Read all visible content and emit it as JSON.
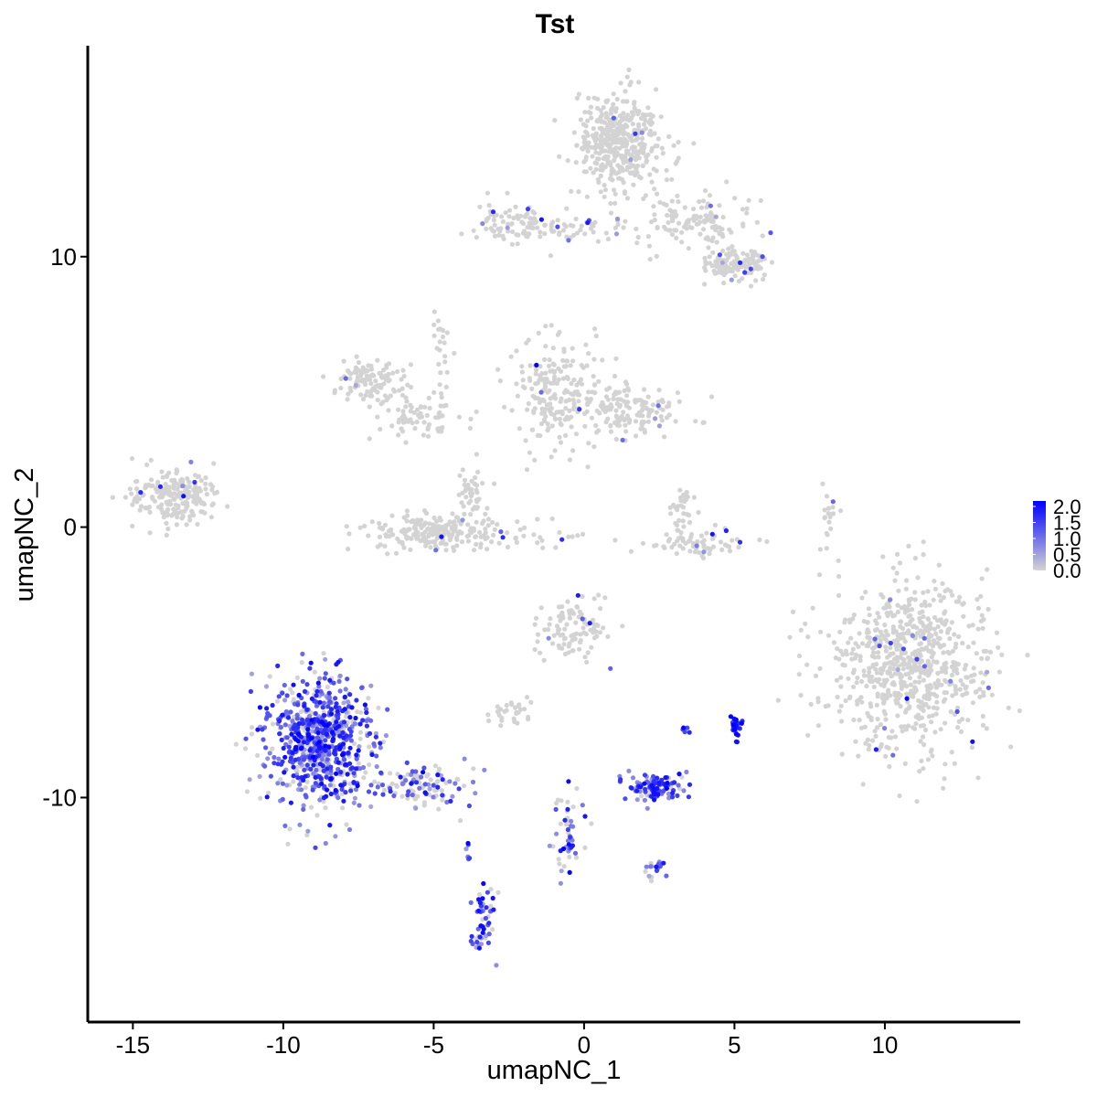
{
  "chart_data": {
    "type": "scatter",
    "title": "Tst",
    "xlabel": "umapNC_1",
    "ylabel": "umapNC_2",
    "xlim": [
      -16.5,
      14.5
    ],
    "ylim": [
      -18.3,
      17.8
    ],
    "x_ticks": [
      -15,
      -10,
      -5,
      0,
      5,
      10
    ],
    "x_tick_labels": [
      "-15",
      "-10",
      "-5",
      "0",
      "5",
      "10"
    ],
    "y_ticks": [
      -10,
      0,
      10
    ],
    "y_tick_labels": [
      "-10",
      "0",
      "10"
    ],
    "grid": false,
    "legend": {
      "position": "right",
      "type": "colorbar",
      "range": [
        0,
        2
      ],
      "labels": [
        "2.0",
        "1.5",
        "1.0",
        "0.5",
        "0.0"
      ],
      "low_color": "#d3d3d3",
      "high_color": "#0000ff"
    },
    "clusters": [
      {
        "center": [
          1.2,
          14.3
        ],
        "spread": [
          0.7,
          0.9
        ],
        "count": 420,
        "expr": 0.02
      },
      {
        "center": [
          -2.3,
          11.3
        ],
        "spread": [
          0.6,
          0.35
        ],
        "count": 70,
        "expr": 0.05
      },
      {
        "center": [
          -0.5,
          11.0
        ],
        "spread": [
          1.2,
          0.25
        ],
        "count": 60,
        "expr": 0.05
      },
      {
        "center": [
          3.8,
          11.3
        ],
        "spread": [
          1.0,
          0.6
        ],
        "count": 120,
        "expr": 0.05
      },
      {
        "center": [
          4.8,
          9.7
        ],
        "spread": [
          0.5,
          0.4
        ],
        "count": 80,
        "expr": 0.05
      },
      {
        "center": [
          5.6,
          9.7
        ],
        "spread": [
          0.3,
          0.3
        ],
        "count": 40,
        "expr": 0.05
      },
      {
        "center": [
          -7.0,
          5.5
        ],
        "spread": [
          0.6,
          0.4
        ],
        "count": 110,
        "expr": 0.02
      },
      {
        "center": [
          -5.5,
          4.1
        ],
        "spread": [
          0.8,
          0.35
        ],
        "count": 70,
        "expr": 0.02
      },
      {
        "center": [
          -4.8,
          6.0
        ],
        "spread": [
          0.15,
          1.0
        ],
        "count": 25,
        "expr": 0.02
      },
      {
        "center": [
          -1.0,
          4.8
        ],
        "spread": [
          0.8,
          1.0
        ],
        "count": 200,
        "expr": 0.02
      },
      {
        "center": [
          1.5,
          4.3
        ],
        "spread": [
          1.0,
          0.5
        ],
        "count": 150,
        "expr": 0.02
      },
      {
        "center": [
          -13.6,
          1.1
        ],
        "spread": [
          0.7,
          0.5
        ],
        "count": 220,
        "expr": 0.03
      },
      {
        "center": [
          -4.9,
          -0.2
        ],
        "spread": [
          1.1,
          0.35
        ],
        "count": 220,
        "expr": 0.02
      },
      {
        "center": [
          -3.8,
          1.3
        ],
        "spread": [
          0.25,
          0.6
        ],
        "count": 40,
        "expr": 0.02
      },
      {
        "center": [
          3.6,
          -0.6
        ],
        "spread": [
          0.8,
          0.25
        ],
        "count": 70,
        "expr": 0.05
      },
      {
        "center": [
          3.3,
          0.8
        ],
        "spread": [
          0.25,
          0.5
        ],
        "count": 30,
        "expr": 0.02
      },
      {
        "center": [
          -1.5,
          -0.3
        ],
        "spread": [
          0.6,
          0.25
        ],
        "count": 20,
        "expr": 0.02
      },
      {
        "center": [
          8.1,
          0.3
        ],
        "spread": [
          0.15,
          0.5
        ],
        "count": 20,
        "expr": 0.02
      },
      {
        "center": [
          10.8,
          -5.0
        ],
        "spread": [
          1.3,
          1.5
        ],
        "count": 750,
        "expr": 0.02
      },
      {
        "center": [
          -0.3,
          -3.8
        ],
        "spread": [
          0.6,
          0.6
        ],
        "count": 100,
        "expr": 0.05
      },
      {
        "center": [
          -2.5,
          -6.8
        ],
        "spread": [
          0.4,
          0.25
        ],
        "count": 30,
        "expr": 0.05
      },
      {
        "center": [
          -8.8,
          -8.0
        ],
        "spread": [
          0.9,
          1.2
        ],
        "count": 750,
        "expr": 0.75
      },
      {
        "center": [
          -5.5,
          -9.6
        ],
        "spread": [
          0.9,
          0.4
        ],
        "count": 110,
        "expr": 0.5
      },
      {
        "center": [
          2.4,
          -9.6
        ],
        "spread": [
          0.5,
          0.25
        ],
        "count": 110,
        "expr": 0.85
      },
      {
        "center": [
          5.1,
          -7.4
        ],
        "spread": [
          0.12,
          0.2
        ],
        "count": 25,
        "expr": 1.8
      },
      {
        "center": [
          3.4,
          -7.5
        ],
        "spread": [
          0.08,
          0.08
        ],
        "count": 5,
        "expr": 1.5
      },
      {
        "center": [
          -0.5,
          -11.2
        ],
        "spread": [
          0.3,
          0.8
        ],
        "count": 50,
        "expr": 0.5
      },
      {
        "center": [
          2.3,
          -12.6
        ],
        "spread": [
          0.25,
          0.2
        ],
        "count": 20,
        "expr": 0.7
      },
      {
        "center": [
          -3.4,
          -14.8
        ],
        "spread": [
          0.2,
          0.7
        ],
        "count": 55,
        "expr": 0.8
      },
      {
        "center": [
          -3.9,
          -12.0
        ],
        "spread": [
          0.05,
          0.3
        ],
        "count": 6,
        "expr": 1.0
      }
    ]
  }
}
